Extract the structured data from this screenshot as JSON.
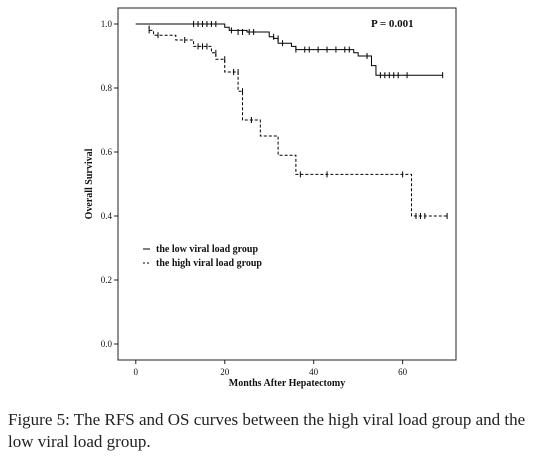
{
  "chart_data": {
    "type": "line",
    "subtype": "kaplan-meier",
    "title": "",
    "xlabel": "Months After Hepatectomy",
    "ylabel": "Overall Survival",
    "xlim": [
      -4,
      72
    ],
    "ylim": [
      -0.05,
      1.05
    ],
    "x_ticks": [
      0,
      20,
      40,
      60
    ],
    "y_ticks": [
      0.0,
      0.2,
      0.4,
      0.6,
      0.8,
      1.0
    ],
    "x_tick_labels": [
      "0",
      "20",
      "40",
      "60"
    ],
    "y_tick_labels": [
      "0.0",
      "0.2",
      "0.4",
      "0.6",
      "0.8",
      "1.0"
    ],
    "annotation": "P = 0.001",
    "grid": false,
    "legend_position": "lower-left",
    "series": [
      {
        "name": "the low viral load group",
        "line_style": "solid",
        "color": "#000000",
        "steps": [
          [
            0,
            1.0
          ],
          [
            20,
            0.99
          ],
          [
            21,
            0.98
          ],
          [
            25,
            0.975
          ],
          [
            30,
            0.96
          ],
          [
            31,
            0.955
          ],
          [
            32,
            0.94
          ],
          [
            35,
            0.93
          ],
          [
            36,
            0.92
          ],
          [
            49,
            0.91
          ],
          [
            50,
            0.9
          ],
          [
            53,
            0.87
          ],
          [
            54,
            0.84
          ],
          [
            69,
            0.84
          ]
        ],
        "censored": [
          [
            13,
            1.0
          ],
          [
            14,
            1.0
          ],
          [
            15,
            1.0
          ],
          [
            16,
            1.0
          ],
          [
            17,
            1.0
          ],
          [
            18,
            1.0
          ],
          [
            21.5,
            0.98
          ],
          [
            23,
            0.975
          ],
          [
            24,
            0.975
          ],
          [
            25.5,
            0.975
          ],
          [
            26.5,
            0.975
          ],
          [
            31,
            0.96
          ],
          [
            32,
            0.955
          ],
          [
            33,
            0.94
          ],
          [
            36,
            0.92
          ],
          [
            38,
            0.92
          ],
          [
            39,
            0.92
          ],
          [
            41,
            0.92
          ],
          [
            43,
            0.92
          ],
          [
            45,
            0.92
          ],
          [
            47,
            0.92
          ],
          [
            48,
            0.92
          ],
          [
            52,
            0.9
          ],
          [
            55,
            0.84
          ],
          [
            56,
            0.84
          ],
          [
            57,
            0.84
          ],
          [
            58,
            0.84
          ],
          [
            59,
            0.84
          ],
          [
            61,
            0.84
          ],
          [
            69,
            0.84
          ]
        ]
      },
      {
        "name": "the high viral load group",
        "line_style": "dashed",
        "color": "#000000",
        "steps": [
          [
            0,
            1.0
          ],
          [
            3,
            0.98
          ],
          [
            4,
            0.965
          ],
          [
            9,
            0.95
          ],
          [
            13,
            0.93
          ],
          [
            17,
            0.91
          ],
          [
            18,
            0.89
          ],
          [
            20,
            0.85
          ],
          [
            23,
            0.79
          ],
          [
            24,
            0.7
          ],
          [
            28,
            0.65
          ],
          [
            32,
            0.59
          ],
          [
            36,
            0.53
          ],
          [
            62,
            0.4
          ],
          [
            70,
            0.4
          ]
        ],
        "censored": [
          [
            3,
            0.98
          ],
          [
            5,
            0.965
          ],
          [
            11,
            0.95
          ],
          [
            14,
            0.93
          ],
          [
            15,
            0.93
          ],
          [
            16,
            0.93
          ],
          [
            18,
            0.91
          ],
          [
            20,
            0.89
          ],
          [
            22,
            0.85
          ],
          [
            23,
            0.85
          ],
          [
            24,
            0.79
          ],
          [
            26,
            0.7
          ],
          [
            37,
            0.53
          ],
          [
            43,
            0.53
          ],
          [
            60,
            0.53
          ],
          [
            63,
            0.4
          ],
          [
            64,
            0.4
          ],
          [
            65,
            0.4
          ],
          [
            70,
            0.4
          ]
        ]
      }
    ]
  },
  "caption": {
    "label": "Figure 5:",
    "text": " The RFS and OS curves between the high viral load group and the low viral load group."
  }
}
